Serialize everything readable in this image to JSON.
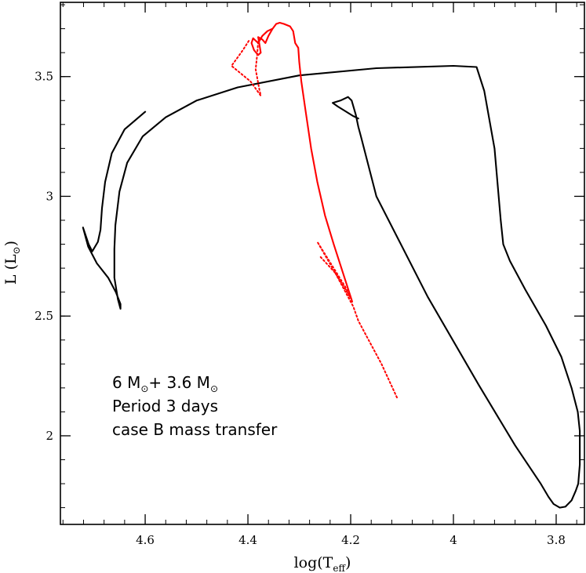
{
  "chart_data": {
    "type": "line",
    "title": "",
    "xlabel": "log(T",
    "xlabel_sub": "eff",
    "xlabel_close": ")",
    "ylabel": "L (L",
    "ylabel_sub": "⊙",
    "ylabel_close": ")",
    "x_reversed": true,
    "xlim": [
      4.765,
      3.745
    ],
    "ylim": [
      1.63,
      3.81
    ],
    "x_ticks": [
      {
        "value": 4.6,
        "label": "4.6"
      },
      {
        "value": 4.4,
        "label": "4.4"
      },
      {
        "value": 4.2,
        "label": "4.2"
      },
      {
        "value": 4.0,
        "label": "4"
      },
      {
        "value": 3.8,
        "label": "3.8"
      }
    ],
    "y_ticks": [
      {
        "value": 2.0,
        "label": "2"
      },
      {
        "value": 2.5,
        "label": "2.5"
      },
      {
        "value": 3.0,
        "label": "3"
      },
      {
        "value": 3.5,
        "label": "3.5"
      }
    ],
    "x_minor_step": 0.04,
    "y_minor_step": 0.1,
    "grid": false,
    "colors": {
      "primary": "#000000",
      "secondary": "#ff0000"
    },
    "annotations": {
      "line1_a": "6 M",
      "line1_sun1": "⊙",
      "line1_b": "+ 3.6 M",
      "line1_sun2": "⊙",
      "line2": "Period 3 days",
      "line3": "case B mass transfer"
    },
    "series": [
      {
        "role": "primary-star",
        "color": "#000000",
        "style": "solid",
        "points": [
          [
            4.6,
            3.353
          ],
          [
            4.64,
            3.28
          ],
          [
            4.665,
            3.18
          ],
          [
            4.678,
            3.06
          ],
          [
            4.684,
            2.95
          ],
          [
            4.687,
            2.86
          ],
          [
            4.692,
            2.81
          ],
          [
            4.703,
            2.77
          ],
          [
            4.71,
            2.8
          ],
          [
            4.721,
            2.87
          ],
          [
            4.711,
            2.79
          ],
          [
            4.694,
            2.72
          ],
          [
            4.672,
            2.66
          ],
          [
            4.657,
            2.6
          ],
          [
            4.648,
            2.55
          ],
          [
            4.648,
            2.53
          ],
          [
            4.653,
            2.57
          ],
          [
            4.66,
            2.66
          ],
          [
            4.66,
            2.78
          ],
          [
            4.658,
            2.88
          ],
          [
            4.65,
            3.02
          ],
          [
            4.635,
            3.14
          ],
          [
            4.605,
            3.25
          ],
          [
            4.56,
            3.33
          ],
          [
            4.5,
            3.4
          ],
          [
            4.42,
            3.455
          ],
          [
            4.3,
            3.505
          ],
          [
            4.15,
            3.535
          ],
          [
            4.0,
            3.545
          ],
          [
            3.955,
            3.54
          ],
          [
            3.94,
            3.44
          ],
          [
            3.92,
            3.2
          ],
          [
            3.908,
            2.9
          ],
          [
            3.903,
            2.8
          ],
          [
            3.89,
            2.73
          ],
          [
            3.86,
            2.61
          ],
          [
            3.82,
            2.46
          ],
          [
            3.79,
            2.33
          ],
          [
            3.77,
            2.2
          ],
          [
            3.758,
            2.1
          ],
          [
            3.754,
            2.02
          ],
          [
            3.754,
            1.88
          ],
          [
            3.757,
            1.8
          ],
          [
            3.762,
            1.77
          ],
          [
            3.77,
            1.73
          ],
          [
            3.782,
            1.704
          ],
          [
            3.793,
            1.7
          ],
          [
            3.805,
            1.715
          ],
          [
            3.815,
            1.745
          ],
          [
            3.83,
            1.8
          ],
          [
            3.88,
            1.96
          ],
          [
            3.95,
            2.21
          ],
          [
            4.05,
            2.58
          ],
          [
            4.15,
            3.0
          ],
          [
            4.18,
            3.25
          ],
          [
            4.185,
            3.29
          ],
          [
            4.19,
            3.34
          ],
          [
            4.198,
            3.4
          ],
          [
            4.205,
            3.415
          ],
          [
            4.22,
            3.4
          ],
          [
            4.235,
            3.39
          ],
          [
            4.225,
            3.375
          ],
          [
            4.21,
            3.355
          ],
          [
            4.195,
            3.335
          ],
          [
            4.185,
            3.325
          ]
        ]
      },
      {
        "role": "red-solid",
        "color": "#ff0000",
        "style": "solid",
        "points": [
          [
            4.197,
            2.56
          ],
          [
            4.215,
            2.68
          ],
          [
            4.233,
            2.8
          ],
          [
            4.25,
            2.92
          ],
          [
            4.265,
            3.06
          ],
          [
            4.277,
            3.2
          ],
          [
            4.288,
            3.36
          ],
          [
            4.296,
            3.48
          ],
          [
            4.3,
            3.56
          ],
          [
            4.302,
            3.62
          ],
          [
            4.308,
            3.64
          ],
          [
            4.312,
            3.69
          ],
          [
            4.318,
            3.71
          ],
          [
            4.33,
            3.72
          ],
          [
            4.338,
            3.725
          ],
          [
            4.345,
            3.72
          ],
          [
            4.352,
            3.7
          ],
          [
            4.36,
            3.67
          ],
          [
            4.366,
            3.64
          ],
          [
            4.372,
            3.655
          ],
          [
            4.38,
            3.665
          ],
          [
            4.378,
            3.64
          ],
          [
            4.375,
            3.6
          ],
          [
            4.38,
            3.59
          ],
          [
            4.388,
            3.61
          ],
          [
            4.393,
            3.64
          ],
          [
            4.39,
            3.66
          ],
          [
            4.38,
            3.64
          ],
          [
            4.372,
            3.67
          ],
          [
            4.362,
            3.69
          ],
          [
            4.352,
            3.7
          ]
        ]
      },
      {
        "role": "red-dotted",
        "color": "#ff0000",
        "style": "dotted",
        "points": [
          [
            4.11,
            2.16
          ],
          [
            4.14,
            2.3
          ],
          [
            4.165,
            2.4
          ],
          [
            4.185,
            2.48
          ],
          [
            4.195,
            2.54
          ],
          [
            4.2,
            2.56
          ],
          [
            4.23,
            2.68
          ],
          [
            4.265,
            2.81
          ],
          [
            4.233,
            2.7
          ],
          [
            4.21,
            2.62
          ],
          [
            4.2,
            2.575
          ],
          [
            4.23,
            2.68
          ],
          [
            4.26,
            2.75
          ]
        ]
      },
      {
        "role": "red-dotted-loop",
        "color": "#ff0000",
        "style": "dotted",
        "points": [
          [
            4.38,
            3.645
          ],
          [
            4.382,
            3.59
          ],
          [
            4.385,
            3.53
          ],
          [
            4.378,
            3.45
          ],
          [
            4.375,
            3.42
          ],
          [
            4.395,
            3.48
          ],
          [
            4.432,
            3.545
          ],
          [
            4.42,
            3.58
          ],
          [
            4.41,
            3.61
          ],
          [
            4.398,
            3.65
          ]
        ]
      }
    ]
  }
}
